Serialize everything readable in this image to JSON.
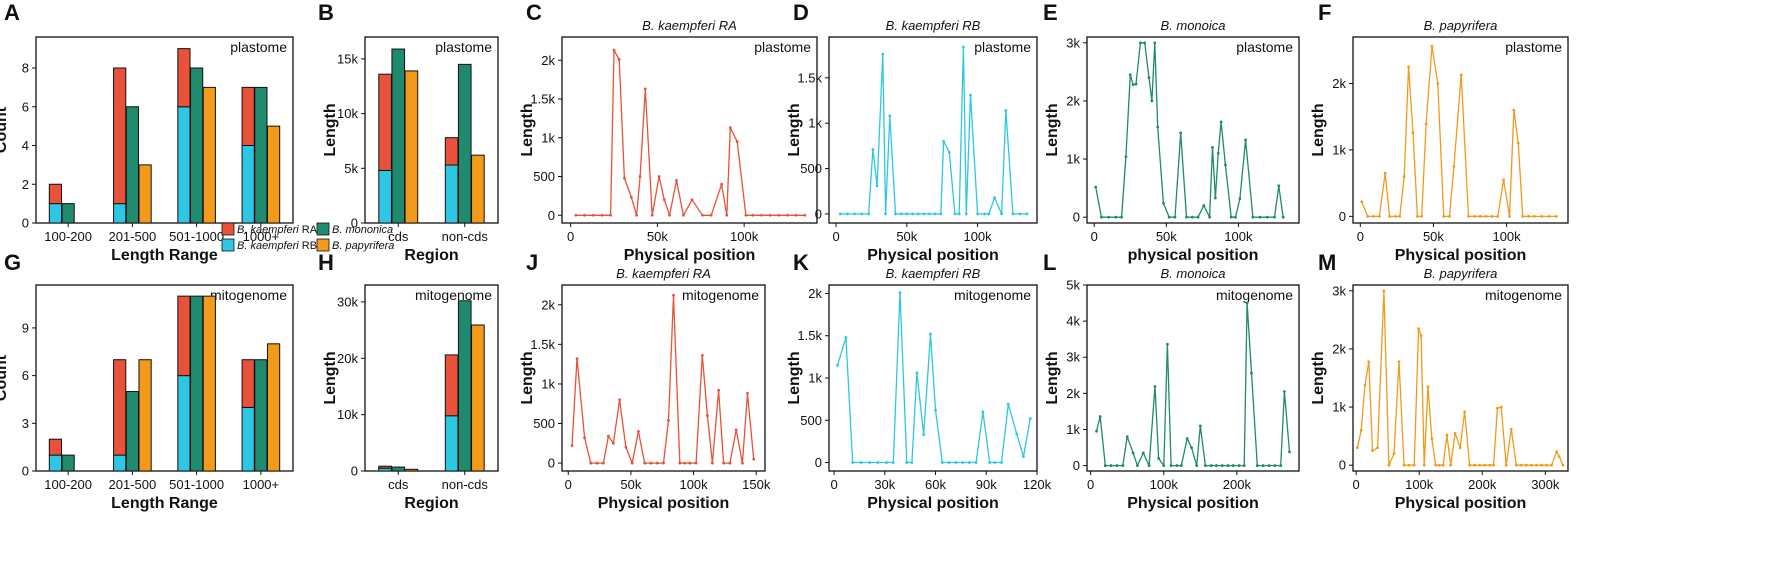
{
  "colors": {
    "kRA": "#e8523a",
    "kRB": "#2ec7e3",
    "mono": "#1f8a6e",
    "papy": "#f39a1b"
  },
  "legend": {
    "items": [
      {
        "key": "kRA",
        "italic": "B. kaempferi",
        "suffix": " RA"
      },
      {
        "key": "mono",
        "italic": "B. mononica",
        "suffix": ""
      },
      {
        "key": "kRB",
        "italic": "B. kaempferi",
        "suffix": " RB"
      },
      {
        "key": "papy",
        "italic": "B. papyrifera",
        "suffix": ""
      }
    ]
  },
  "chart_data": [
    {
      "id": "A",
      "type": "bar",
      "stacked_first": true,
      "corner": "plastome",
      "xlabel": "Length Range",
      "ylabel": "Count",
      "categories": [
        "100-200",
        "201-500",
        "501-1000",
        "1000+"
      ],
      "ylim": [
        0,
        9.6
      ],
      "yticks": [
        0,
        2,
        4,
        6,
        8
      ],
      "series": [
        {
          "name": "B. kaempferi RA",
          "values": [
            1,
            7,
            3,
            3
          ]
        },
        {
          "name": "B. kaempferi RB",
          "values": [
            1,
            1,
            6,
            4
          ]
        },
        {
          "name": "B. mononica",
          "values": [
            1,
            6,
            8,
            7
          ]
        },
        {
          "name": "B. papyrifera",
          "values": [
            0,
            3,
            7,
            5
          ]
        }
      ]
    },
    {
      "id": "B",
      "type": "bar",
      "stacked_first": true,
      "corner": "plastome",
      "xlabel": "Region",
      "ylabel": "Length",
      "categories": [
        "cds",
        "non-cds"
      ],
      "ylim": [
        0,
        17000
      ],
      "yticks": [
        0,
        5000,
        10000,
        15000
      ],
      "series": [
        {
          "name": "B. kaempferi RA",
          "values": [
            8800,
            2500
          ]
        },
        {
          "name": "B. kaempferi RB",
          "values": [
            4800,
            5300
          ]
        },
        {
          "name": "B. mononica",
          "values": [
            15900,
            14500
          ]
        },
        {
          "name": "B. papyrifera",
          "values": [
            13900,
            6200
          ]
        }
      ]
    },
    {
      "id": "C",
      "type": "line",
      "title": "B. kaempferi RA",
      "corner": "plastome",
      "color": "kRA",
      "xlabel": "Physical position",
      "ylabel": "Length",
      "xlim": [
        -5000,
        142000
      ],
      "ylim": [
        -100,
        2300
      ],
      "xticks": [
        0,
        50000,
        100000
      ],
      "yticks": [
        0,
        500,
        1000,
        1500,
        2000
      ],
      "x": [
        3000,
        8000,
        13000,
        18000,
        23000,
        25000,
        28000,
        31000,
        35000,
        38000,
        40000,
        43000,
        47000,
        51000,
        54000,
        57000,
        61000,
        65000,
        70000,
        76000,
        81000,
        87000,
        90000,
        92000,
        96000,
        101000,
        105000,
        110000,
        115000,
        120000,
        125000,
        130000,
        135000
      ],
      "y": [
        0,
        0,
        0,
        0,
        0,
        2130,
        2010,
        480,
        230,
        0,
        500,
        1630,
        0,
        500,
        200,
        0,
        450,
        0,
        200,
        0,
        0,
        400,
        0,
        1130,
        950,
        0,
        0,
        0,
        0,
        0,
        0,
        0,
        0
      ]
    },
    {
      "id": "D",
      "type": "line",
      "title": "B. kaempferi RB",
      "corner": "plastome",
      "color": "kRB",
      "xlabel": "Physical position",
      "ylabel": "Length",
      "xlim": [
        -5000,
        142000
      ],
      "ylim": [
        -100,
        1950
      ],
      "xticks": [
        0,
        50000,
        100000
      ],
      "yticks": [
        0,
        500,
        1000,
        1500
      ],
      "x": [
        3000,
        8000,
        13000,
        18000,
        23000,
        26000,
        29000,
        33000,
        35000,
        38000,
        42000,
        46000,
        50000,
        54000,
        58000,
        62000,
        66000,
        70000,
        74000,
        76000,
        80000,
        84000,
        87000,
        90000,
        92000,
        95000,
        100000,
        105000,
        108000,
        112000,
        117000,
        120000,
        125000,
        130000,
        135000
      ],
      "y": [
        0,
        0,
        0,
        0,
        0,
        710,
        310,
        1760,
        0,
        1080,
        0,
        0,
        0,
        0,
        0,
        0,
        0,
        0,
        0,
        800,
        680,
        0,
        0,
        1840,
        0,
        1310,
        0,
        0,
        0,
        180,
        0,
        1140,
        0,
        0,
        0
      ]
    },
    {
      "id": "E",
      "type": "line",
      "title": "B. monoica",
      "corner": "plastome",
      "color": "mono",
      "xlabel": "physical position",
      "ylabel": "Length",
      "xlim": [
        -5000,
        142000
      ],
      "ylim": [
        -100,
        3100
      ],
      "xticks": [
        0,
        50000,
        100000
      ],
      "yticks": [
        0,
        1000,
        2000,
        3000
      ],
      "x": [
        1000,
        5000,
        10000,
        15000,
        19000,
        22000,
        25000,
        27000,
        29000,
        32000,
        35000,
        38000,
        40000,
        42000,
        44000,
        48000,
        52000,
        56000,
        60000,
        64000,
        68000,
        72000,
        76000,
        80000,
        82000,
        84000,
        86000,
        88000,
        91000,
        95000,
        98000,
        101000,
        105000,
        110000,
        115000,
        120000,
        125000,
        128000,
        131000
      ],
      "y": [
        520,
        0,
        0,
        0,
        0,
        1040,
        2450,
        2280,
        2290,
        3000,
        3000,
        2400,
        2000,
        3000,
        1550,
        240,
        0,
        0,
        1450,
        0,
        0,
        0,
        200,
        0,
        1200,
        330,
        1100,
        1640,
        900,
        0,
        0,
        320,
        1330,
        0,
        0,
        0,
        0,
        540,
        0
      ]
    },
    {
      "id": "F",
      "type": "line",
      "title": "B. papyrifera",
      "corner": "plastome",
      "color": "papy",
      "xlabel": "Physical position",
      "ylabel": "Length",
      "xlim": [
        -5000,
        142000
      ],
      "ylim": [
        -100,
        2700
      ],
      "xticks": [
        0,
        50000,
        100000
      ],
      "yticks": [
        0,
        1000,
        2000
      ],
      "x": [
        1000,
        5000,
        9000,
        13000,
        17000,
        20000,
        24000,
        27000,
        30000,
        33000,
        36000,
        39000,
        42000,
        45000,
        49000,
        53000,
        57000,
        61000,
        64000,
        69000,
        74000,
        78000,
        82000,
        86000,
        90000,
        94000,
        98000,
        102000,
        105000,
        108000,
        111000,
        115000,
        119000,
        124000,
        129000,
        134000
      ],
      "y": [
        220,
        0,
        0,
        0,
        650,
        0,
        0,
        0,
        600,
        2250,
        1260,
        0,
        0,
        1390,
        2560,
        2000,
        0,
        0,
        750,
        2130,
        0,
        0,
        0,
        0,
        0,
        0,
        550,
        0,
        1600,
        1100,
        0,
        0,
        0,
        0,
        0,
        0
      ]
    },
    {
      "id": "G",
      "type": "bar",
      "stacked_first": true,
      "corner": "mitogenome",
      "xlabel": "Length Range",
      "ylabel": "Count",
      "categories": [
        "100-200",
        "201-500",
        "501-1000",
        "1000+"
      ],
      "ylim": [
        0,
        11.7
      ],
      "yticks": [
        0,
        3,
        6,
        9
      ],
      "series": [
        {
          "name": "B. kaempferi RA",
          "values": [
            1,
            6,
            5,
            3
          ]
        },
        {
          "name": "B. kaempferi RB",
          "values": [
            1,
            1,
            6,
            4
          ]
        },
        {
          "name": "B. mononica",
          "values": [
            1,
            5,
            11,
            7
          ]
        },
        {
          "name": "B. papyrifera",
          "values": [
            0,
            7,
            11,
            8
          ]
        }
      ]
    },
    {
      "id": "H",
      "type": "bar",
      "stacked_first": true,
      "corner": "mitogenome",
      "xlabel": "Region",
      "ylabel": "Length",
      "categories": [
        "cds",
        "non-cds"
      ],
      "ylim": [
        0,
        33000
      ],
      "yticks": [
        0,
        10000,
        20000,
        30000
      ],
      "series": [
        {
          "name": "B. kaempferi RA",
          "values": [
            350,
            10800
          ]
        },
        {
          "name": "B. kaempferi RB",
          "values": [
            500,
            9800
          ]
        },
        {
          "name": "B. mononica",
          "values": [
            700,
            30200
          ]
        },
        {
          "name": "B. papyrifera",
          "values": [
            300,
            25900
          ]
        }
      ]
    },
    {
      "id": "J",
      "type": "line",
      "title": "B. kaempferi RA",
      "corner": "mitogenome",
      "color": "kRA",
      "xlabel": "Physical position",
      "ylabel": "Length",
      "xlim": [
        -5000,
        157000
      ],
      "ylim": [
        -100,
        2250
      ],
      "xticks": [
        0,
        50000,
        100000,
        150000
      ],
      "yticks": [
        0,
        500,
        1000,
        1500,
        2000
      ],
      "x": [
        3000,
        7000,
        13000,
        18000,
        23000,
        28000,
        32000,
        36000,
        41000,
        46000,
        51000,
        56000,
        61000,
        66000,
        71000,
        76000,
        80000,
        84000,
        89000,
        93000,
        97000,
        102000,
        107000,
        111000,
        115000,
        120000,
        124000,
        129000,
        134000,
        139000,
        143000,
        148000
      ],
      "y": [
        220,
        1320,
        320,
        0,
        0,
        0,
        340,
        250,
        800,
        200,
        0,
        400,
        0,
        0,
        0,
        0,
        540,
        2120,
        0,
        0,
        0,
        0,
        1360,
        600,
        0,
        920,
        0,
        0,
        420,
        0,
        880,
        50
      ]
    },
    {
      "id": "K",
      "type": "line",
      "title": "B. kaempferi RB",
      "corner": "mitogenome",
      "color": "kRB",
      "xlabel": "Physical position",
      "ylabel": "Length",
      "xlim": [
        -3000,
        120000
      ],
      "ylim": [
        -100,
        2100
      ],
      "xticks": [
        0,
        30000,
        60000,
        90000,
        120000
      ],
      "yticks": [
        0,
        500,
        1000,
        1500,
        2000
      ],
      "x": [
        2000,
        7000,
        11000,
        16000,
        21000,
        26000,
        31000,
        35000,
        39000,
        43000,
        46000,
        49000,
        53000,
        57000,
        60000,
        64000,
        68000,
        72000,
        76000,
        80000,
        84000,
        88000,
        92000,
        95000,
        99000,
        103000,
        108000,
        112000,
        116000
      ],
      "y": [
        1150,
        1480,
        0,
        0,
        0,
        0,
        0,
        0,
        2010,
        0,
        0,
        1060,
        330,
        1520,
        620,
        0,
        0,
        0,
        0,
        0,
        0,
        600,
        0,
        0,
        0,
        690,
        340,
        70,
        520
      ]
    },
    {
      "id": "L",
      "type": "line",
      "title": "B. monoica",
      "corner": "mitogenome",
      "color": "mono",
      "xlabel": "Physical position",
      "ylabel": "Length",
      "xlim": [
        -5000,
        285000
      ],
      "ylim": [
        -150,
        5000
      ],
      "xticks": [
        0,
        100000,
        200000
      ],
      "yticks": [
        0,
        1000,
        2000,
        3000,
        4000,
        5000
      ],
      "x": [
        8000,
        13000,
        20000,
        28000,
        36000,
        44000,
        50000,
        58000,
        64000,
        72000,
        80000,
        88000,
        93000,
        100000,
        105000,
        110000,
        118000,
        124000,
        132000,
        138000,
        145000,
        150000,
        157000,
        165000,
        172000,
        180000,
        188000,
        195000,
        203000,
        210000,
        214000,
        220000,
        228000,
        236000,
        244000,
        252000,
        260000,
        265000,
        272000
      ],
      "y": [
        950,
        1360,
        0,
        0,
        0,
        0,
        800,
        350,
        0,
        350,
        0,
        2190,
        200,
        0,
        3360,
        0,
        0,
        0,
        750,
        500,
        0,
        1100,
        0,
        0,
        0,
        0,
        0,
        0,
        0,
        0,
        4500,
        2560,
        0,
        0,
        0,
        0,
        0,
        2050,
        380
      ]
    },
    {
      "id": "M",
      "type": "line",
      "title": "B. papyrifera",
      "corner": "mitogenome",
      "color": "papy",
      "xlabel": "Physical position",
      "ylabel": "Length",
      "xlim": [
        -5000,
        336000
      ],
      "ylim": [
        -100,
        3100
      ],
      "xticks": [
        0,
        100000,
        200000,
        300000
      ],
      "yticks": [
        0,
        1000,
        2000,
        3000
      ],
      "x": [
        2000,
        8000,
        14000,
        20000,
        26000,
        34000,
        44000,
        52000,
        60000,
        68000,
        76000,
        84000,
        92000,
        99000,
        103000,
        108000,
        114000,
        120000,
        126000,
        132000,
        138000,
        144000,
        150000,
        157000,
        165000,
        172000,
        180000,
        188000,
        196000,
        204000,
        212000,
        218000,
        224000,
        230000,
        238000,
        246000,
        254000,
        262000,
        270000,
        278000,
        286000,
        294000,
        302000,
        310000,
        318000,
        322000,
        328000
      ],
      "y": [
        300,
        600,
        1380,
        1780,
        250,
        300,
        3000,
        0,
        200,
        1780,
        0,
        0,
        0,
        2350,
        2230,
        0,
        1350,
        460,
        0,
        0,
        0,
        520,
        0,
        550,
        300,
        920,
        0,
        0,
        0,
        0,
        0,
        0,
        980,
        1000,
        0,
        620,
        0,
        0,
        0,
        0,
        0,
        0,
        0,
        0,
        230,
        150,
        0
      ]
    }
  ]
}
